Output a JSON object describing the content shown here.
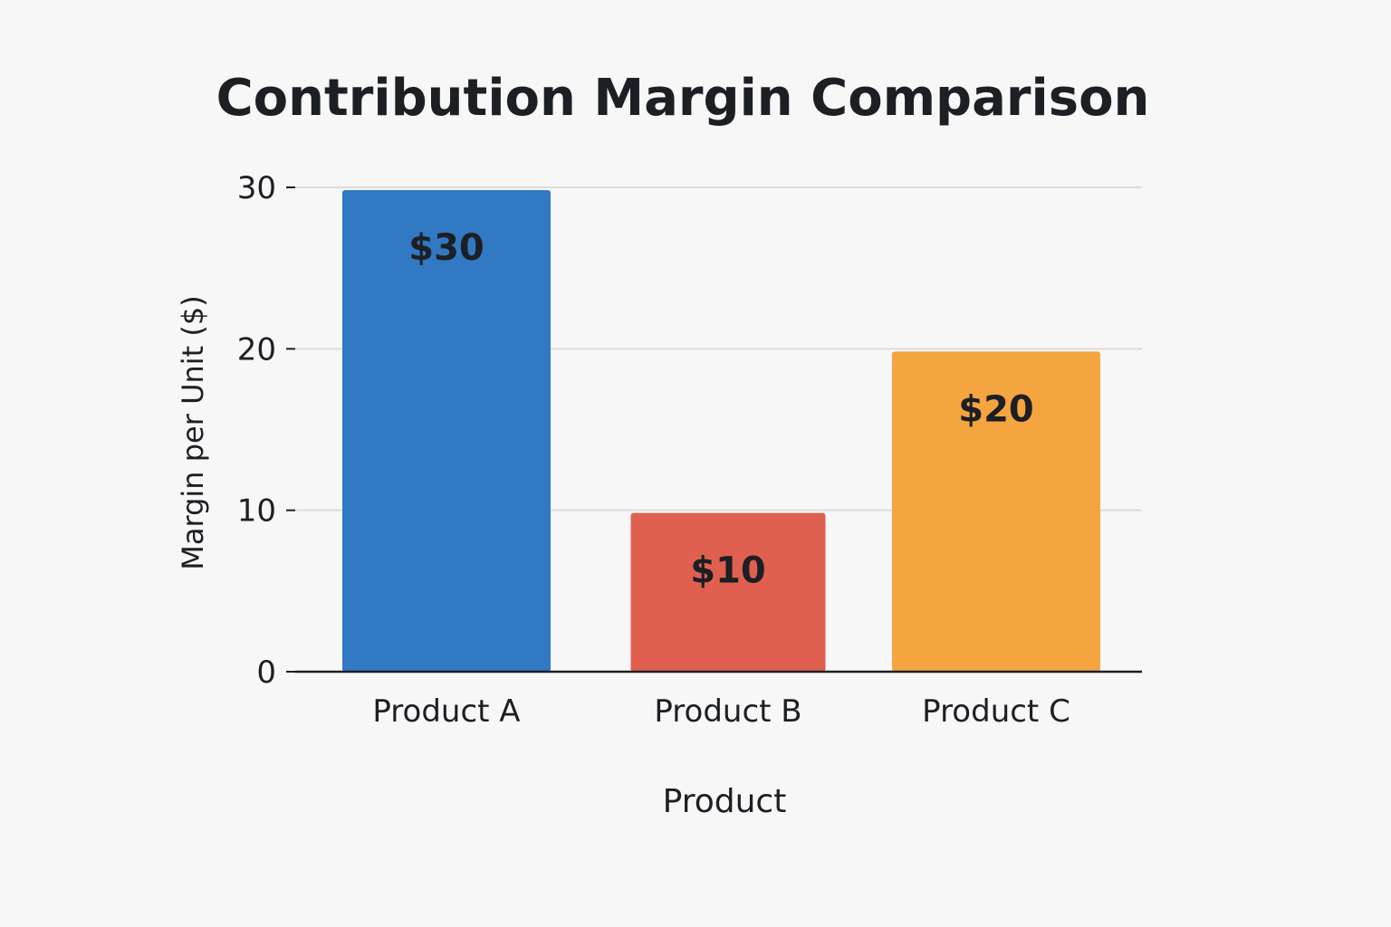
{
  "chart_data": {
    "type": "bar",
    "title": "Contribution Margin Comparison",
    "xlabel": "Product",
    "ylabel": "Margin per Unit ($)",
    "categories": [
      "Product A",
      "Product B",
      "Product C"
    ],
    "values": [
      30,
      10,
      20
    ],
    "data_labels": [
      "$30",
      "$10",
      "$20"
    ],
    "colors": [
      "#3179c2",
      "#e06050",
      "#f5a540"
    ],
    "ylim": [
      0,
      30
    ],
    "yticks": [
      0,
      10,
      20,
      30
    ],
    "grid": true,
    "legend": "none"
  }
}
